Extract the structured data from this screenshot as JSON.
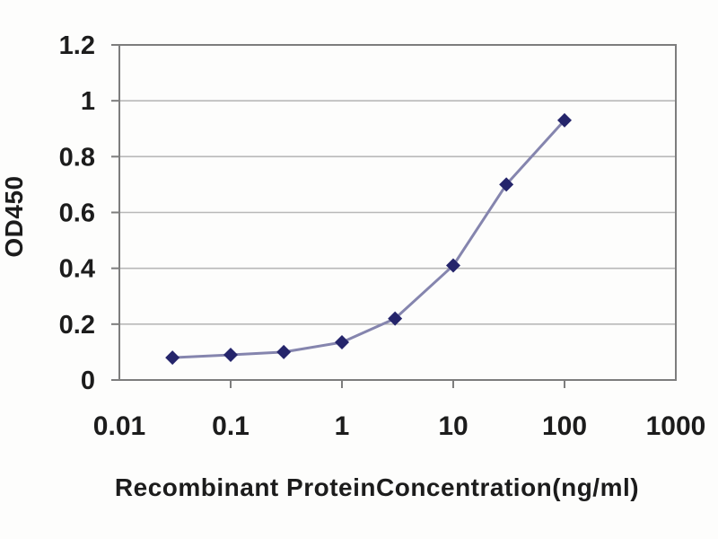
{
  "chart_data": {
    "type": "line",
    "title": "",
    "xlabel": "Recombinant ProteinConcentration(ng/ml)",
    "ylabel": "OD450",
    "x_scale": "log",
    "xlim": [
      0.01,
      1000
    ],
    "ylim": [
      0,
      1.2
    ],
    "x_tick_values": [
      0.01,
      0.1,
      1,
      10,
      100,
      1000
    ],
    "x_tick_labels": [
      "0.01",
      "0.1",
      "1",
      "10",
      "100",
      "1000"
    ],
    "y_tick_values": [
      0,
      0.2,
      0.4,
      0.6,
      0.8,
      1,
      1.2
    ],
    "y_tick_labels": [
      "0",
      "0.2",
      "0.4",
      "0.6",
      "0.8",
      "1",
      "1.2"
    ],
    "grid": "horizontal",
    "legend": "none",
    "series": [
      {
        "name": "OD450",
        "marker": "diamond",
        "x": [
          0.03,
          0.1,
          0.3,
          1,
          3,
          10,
          30,
          100
        ],
        "y": [
          0.08,
          0.09,
          0.1,
          0.135,
          0.22,
          0.41,
          0.7,
          0.93
        ]
      }
    ],
    "colors": {
      "line": "#8585ae",
      "marker": "#25256b",
      "gridline": "#b8b8b8",
      "frame": "#7d7d7d",
      "tick_text": "#1c1c1c",
      "background": "#fdfdfc"
    }
  }
}
